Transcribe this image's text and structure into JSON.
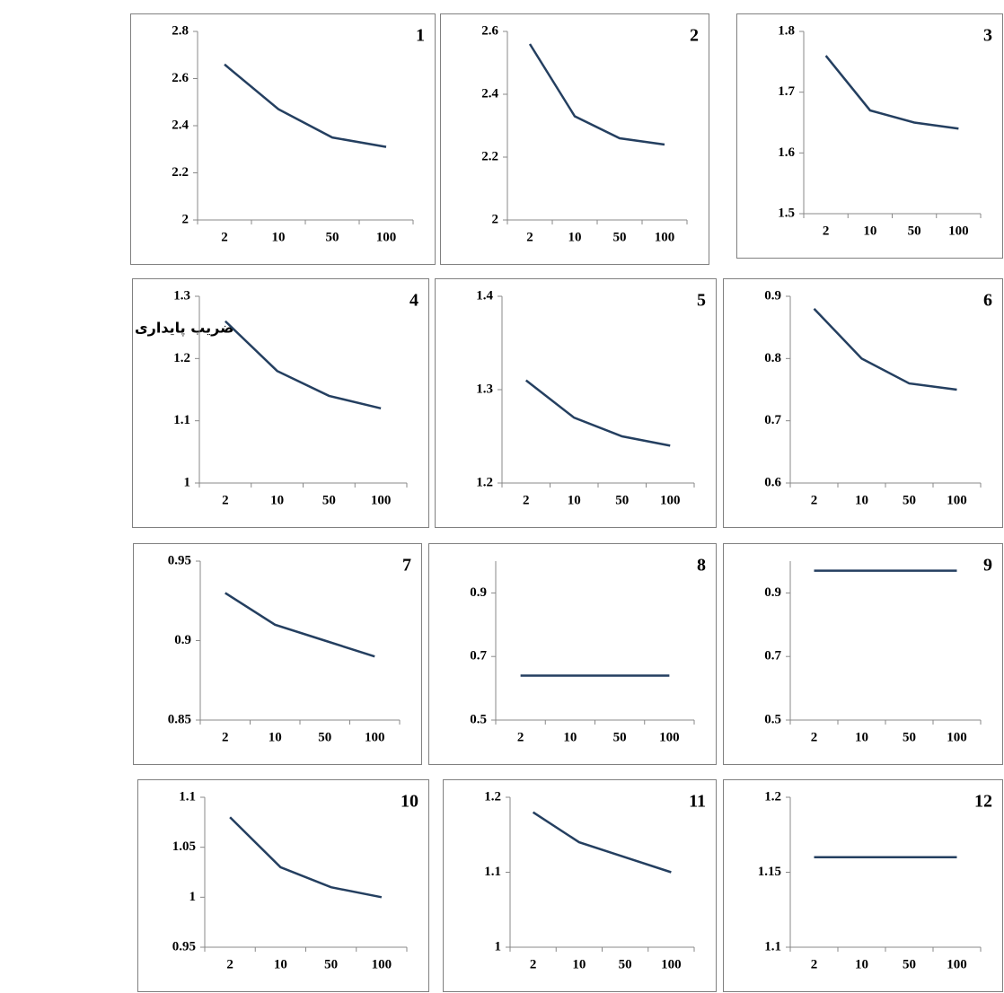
{
  "ylabel": "ضریب پایداری",
  "chart_data": [
    {
      "type": "line",
      "title": "1",
      "categories": [
        "2",
        "10",
        "50",
        "100"
      ],
      "values": [
        2.66,
        2.47,
        2.35,
        2.31
      ],
      "color": "#243f60",
      "ylim": [
        2,
        2.8
      ],
      "yticks": [
        2,
        2.2,
        2.4,
        2.6,
        2.8
      ]
    },
    {
      "type": "line",
      "title": "2",
      "categories": [
        "2",
        "10",
        "50",
        "100"
      ],
      "values": [
        2.56,
        2.33,
        2.26,
        2.24
      ],
      "color": "#243f60",
      "ylim": [
        2,
        2.6
      ],
      "yticks": [
        2,
        2.2,
        2.4,
        2.6
      ]
    },
    {
      "type": "line",
      "title": "3",
      "categories": [
        "2",
        "10",
        "50",
        "100"
      ],
      "values": [
        1.76,
        1.67,
        1.65,
        1.64
      ],
      "color": "#243f60",
      "ylim": [
        1.5,
        1.8
      ],
      "yticks": [
        1.5,
        1.6,
        1.7,
        1.8
      ]
    },
    {
      "type": "line",
      "title": "4",
      "categories": [
        "2",
        "10",
        "50",
        "100"
      ],
      "values": [
        1.26,
        1.18,
        1.14,
        1.12
      ],
      "color": "#243f60",
      "ylim": [
        1,
        1.3
      ],
      "yticks": [
        1,
        1.1,
        1.2,
        1.3
      ]
    },
    {
      "type": "line",
      "title": "5",
      "categories": [
        "2",
        "10",
        "50",
        "100"
      ],
      "values": [
        1.31,
        1.27,
        1.25,
        1.24
      ],
      "color": "#243f60",
      "ylim": [
        1.2,
        1.4
      ],
      "yticks": [
        1.2,
        1.3,
        1.4
      ]
    },
    {
      "type": "line",
      "title": "6",
      "categories": [
        "2",
        "10",
        "50",
        "100"
      ],
      "values": [
        0.88,
        0.8,
        0.76,
        0.75
      ],
      "color": "#243f60",
      "ylim": [
        0.6,
        0.9
      ],
      "yticks": [
        0.6,
        0.7,
        0.8,
        0.9
      ]
    },
    {
      "type": "line",
      "title": "7",
      "categories": [
        "2",
        "10",
        "50",
        "100"
      ],
      "values": [
        0.93,
        0.91,
        0.9,
        0.89
      ],
      "color": "#243f60",
      "ylim": [
        0.85,
        0.95
      ],
      "yticks": [
        0.85,
        0.9,
        0.95
      ]
    },
    {
      "type": "line",
      "title": "8",
      "categories": [
        "2",
        "10",
        "50",
        "100"
      ],
      "values": [
        0.64,
        0.64,
        0.64,
        0.64
      ],
      "color": "#243f60",
      "ylim": [
        0.5,
        1.0
      ],
      "yticks": [
        0.5,
        0.7,
        0.9
      ]
    },
    {
      "type": "line",
      "title": "9",
      "categories": [
        "2",
        "10",
        "50",
        "100"
      ],
      "values": [
        0.97,
        0.97,
        0.97,
        0.97
      ],
      "color": "#243f60",
      "ylim": [
        0.5,
        1.0
      ],
      "yticks": [
        0.5,
        0.7,
        0.9
      ]
    },
    {
      "type": "line",
      "title": "10",
      "categories": [
        "2",
        "10",
        "50",
        "100"
      ],
      "values": [
        1.08,
        1.03,
        1.01,
        1
      ],
      "color": "#243f60",
      "ylim": [
        0.95,
        1.1
      ],
      "yticks": [
        0.95,
        1,
        1.05,
        1.1
      ]
    },
    {
      "type": "line",
      "title": "11",
      "categories": [
        "2",
        "10",
        "50",
        "100"
      ],
      "values": [
        1.18,
        1.14,
        1.12,
        1.1
      ],
      "color": "#243f60",
      "ylim": [
        1,
        1.2
      ],
      "yticks": [
        1,
        1.1,
        1.2
      ]
    },
    {
      "type": "line",
      "title": "12",
      "categories": [
        "2",
        "10",
        "50",
        "100"
      ],
      "values": [
        1.16,
        1.16,
        1.16,
        1.16
      ],
      "color": "#243f60",
      "ylim": [
        1.1,
        1.2
      ],
      "yticks": [
        1.1,
        1.15,
        1.2
      ]
    }
  ]
}
